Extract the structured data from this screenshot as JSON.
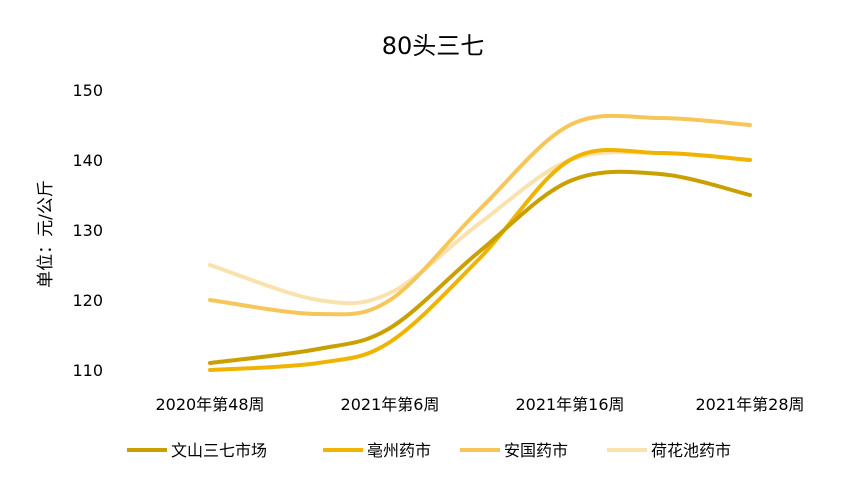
{
  "chart_data": {
    "type": "line",
    "title": "80头三七",
    "xlabel": "",
    "ylabel": "单位：元/公斤",
    "categories": [
      "2020年第48周",
      "2021年第6周",
      "2021年第16周",
      "2021年第28周"
    ],
    "y_ticks": [
      "110",
      "120",
      "130",
      "140",
      "150"
    ],
    "ylim": [
      110,
      150
    ],
    "grid": false,
    "smooth": true,
    "legend_position": "bottom",
    "series": [
      {
        "name": "文山三七市场",
        "color": "#C9A000",
        "x": [
          0,
          0.6,
          1.0,
          1.5,
          2.0,
          2.5,
          3.0
        ],
        "values": [
          111,
          113,
          116,
          127,
          137,
          138,
          135
        ]
      },
      {
        "name": "亳州药市",
        "color": "#F0B400",
        "x": [
          0,
          0.6,
          1.0,
          1.5,
          2.0,
          2.5,
          3.0
        ],
        "values": [
          110,
          111,
          114,
          126,
          140,
          141,
          140
        ]
      },
      {
        "name": "安国药市",
        "color": "#F7C65A",
        "x": [
          0,
          0.6,
          1.0,
          1.5,
          2.0,
          2.5,
          3.0
        ],
        "values": [
          120,
          118,
          120,
          133,
          145,
          146,
          145
        ]
      },
      {
        "name": "荷花池药市",
        "color": "#F9E2AE",
        "x": [
          0,
          0.6,
          1.0,
          1.5,
          2.0,
          2.5,
          3.0
        ],
        "values": [
          125,
          120,
          121,
          131,
          140,
          141,
          140
        ]
      }
    ]
  }
}
